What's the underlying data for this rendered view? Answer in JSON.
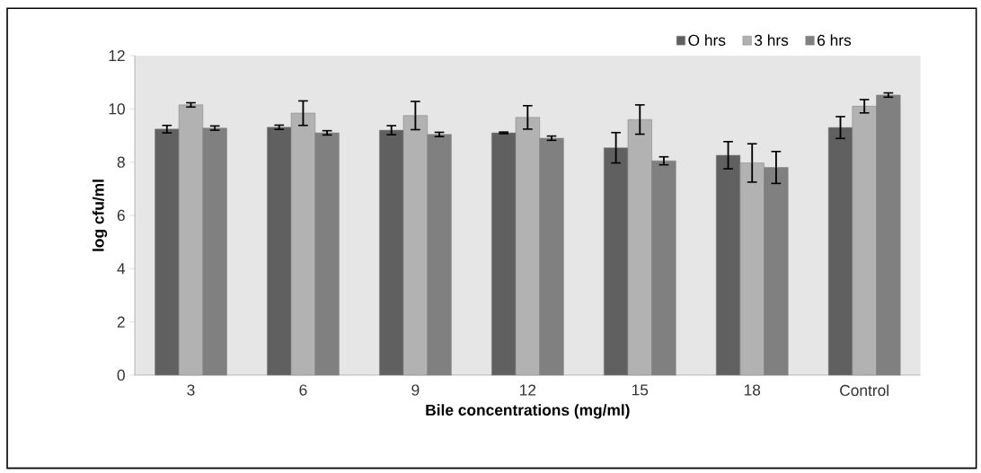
{
  "chart_data": {
    "type": "bar",
    "xlabel": "Bile concentrations (mg/ml)",
    "ylabel": "log cfu/ml",
    "categories": [
      "3",
      "6",
      "9",
      "12",
      "15",
      "18",
      "Control"
    ],
    "series": [
      {
        "name": "O hrs",
        "color": "#606060",
        "values": [
          9.24,
          9.31,
          9.2,
          9.1,
          8.54,
          8.26,
          9.3
        ],
        "errors": [
          0.14,
          0.08,
          0.17,
          0.03,
          0.57,
          0.51,
          0.41
        ]
      },
      {
        "name": "3 hrs",
        "color": "#b2b2b2",
        "values": [
          10.15,
          9.84,
          9.75,
          9.68,
          9.6,
          7.97,
          10.1
        ],
        "errors": [
          0.08,
          0.46,
          0.53,
          0.44,
          0.55,
          0.72,
          0.25
        ]
      },
      {
        "name": "6 hrs",
        "color": "#808080",
        "values": [
          9.28,
          9.1,
          9.04,
          8.9,
          8.05,
          7.8,
          10.52
        ],
        "errors": [
          0.08,
          0.08,
          0.08,
          0.08,
          0.15,
          0.6,
          0.08
        ]
      }
    ],
    "ylim": [
      0,
      12
    ],
    "yticks": [
      0,
      2,
      4,
      6,
      8,
      10,
      12
    ],
    "grid": false,
    "legend": "top right"
  }
}
